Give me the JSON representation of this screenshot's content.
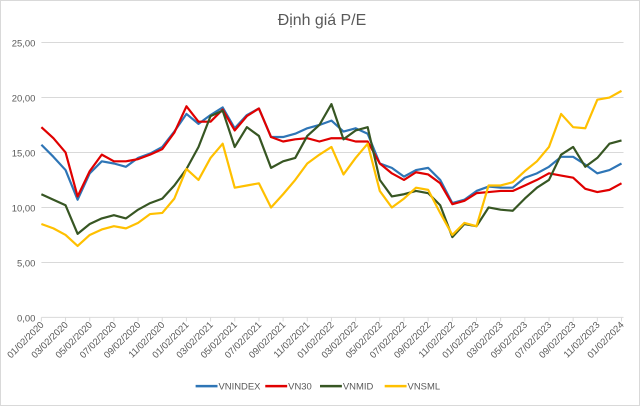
{
  "chart_data": {
    "type": "line",
    "title": "Định giá P/E",
    "xlabel": "",
    "ylabel": "",
    "ylim": [
      0,
      25
    ],
    "y_ticks": [
      "0,00",
      "5,00",
      "10,00",
      "15,00",
      "20,00",
      "25,00"
    ],
    "x_tick_labels": [
      "01/02/2020",
      "03/02/2020",
      "05/02/2020",
      "07/02/2020",
      "09/02/2020",
      "11/02/2020",
      "01/02/2021",
      "03/02/2021",
      "05/02/2021",
      "07/02/2021",
      "09/02/2021",
      "11/02/2021",
      "01/02/2022",
      "03/02/2022",
      "05/02/2022",
      "07/02/2022",
      "09/02/2022",
      "11/02/2022",
      "01/02/2023",
      "03/02/2023",
      "05/02/2023",
      "07/02/2023",
      "09/02/2023",
      "11/02/2023",
      "01/02/2024"
    ],
    "grid": "horizontal",
    "legend": "bottom",
    "x": [
      "2020-01",
      "2020-02",
      "2020-03",
      "2020-04",
      "2020-05",
      "2020-06",
      "2020-07",
      "2020-08",
      "2020-09",
      "2020-10",
      "2020-11",
      "2020-12",
      "2021-01",
      "2021-02",
      "2021-03",
      "2021-04",
      "2021-05",
      "2021-06",
      "2021-07",
      "2021-08",
      "2021-09",
      "2021-10",
      "2021-11",
      "2021-12",
      "2022-01",
      "2022-02",
      "2022-03",
      "2022-04",
      "2022-05",
      "2022-06",
      "2022-07",
      "2022-08",
      "2022-09",
      "2022-10",
      "2022-11",
      "2022-12",
      "2023-01",
      "2023-02",
      "2023-03",
      "2023-04",
      "2023-05",
      "2023-06",
      "2023-07",
      "2023-08",
      "2023-09",
      "2023-10",
      "2023-11",
      "2023-12",
      "2024-01"
    ],
    "series": [
      {
        "name": "VNINDEX",
        "color": "#2e75b6",
        "values": [
          15.7,
          14.6,
          13.4,
          10.7,
          13.1,
          14.2,
          14.0,
          13.7,
          14.5,
          14.9,
          15.5,
          16.9,
          18.5,
          17.6,
          18.4,
          19.1,
          17.2,
          18.4,
          19.0,
          16.4,
          16.4,
          16.7,
          17.2,
          17.5,
          17.9,
          16.9,
          17.2,
          16.7,
          14.0,
          13.6,
          12.8,
          13.4,
          13.6,
          12.5,
          10.4,
          10.7,
          11.5,
          11.9,
          11.8,
          11.8,
          12.7,
          13.1,
          13.7,
          14.6,
          14.6,
          13.9,
          13.1,
          13.4,
          14.0
        ]
      },
      {
        "name": "VN30",
        "color": "#e00000",
        "values": [
          17.3,
          16.3,
          15.0,
          11.0,
          13.3,
          14.8,
          14.2,
          14.2,
          14.4,
          14.8,
          15.3,
          16.8,
          19.2,
          17.8,
          17.8,
          18.9,
          17.0,
          18.3,
          19.0,
          16.4,
          16.0,
          16.2,
          16.3,
          16.0,
          16.3,
          16.3,
          16.0,
          16.0,
          14.0,
          13.1,
          12.5,
          13.2,
          13.0,
          12.2,
          10.3,
          10.6,
          11.3,
          11.4,
          11.5,
          11.5,
          12.0,
          12.5,
          13.1,
          12.9,
          12.7,
          11.7,
          11.4,
          11.6,
          12.2
        ]
      },
      {
        "name": "VNMID",
        "color": "#375623",
        "values": [
          11.2,
          10.7,
          10.2,
          7.6,
          8.5,
          9.0,
          9.3,
          9.0,
          9.8,
          10.4,
          10.8,
          12.0,
          13.5,
          15.5,
          18.3,
          18.8,
          15.5,
          17.3,
          16.5,
          13.6,
          14.2,
          14.5,
          16.5,
          17.5,
          19.4,
          16.2,
          17.0,
          17.3,
          12.5,
          11.0,
          11.2,
          11.5,
          11.3,
          10.2,
          7.3,
          8.5,
          8.3,
          10.0,
          9.8,
          9.7,
          10.8,
          11.8,
          12.5,
          14.8,
          15.5,
          13.7,
          14.5,
          15.8,
          16.1
        ]
      },
      {
        "name": "VNSML",
        "color": "#ffc000",
        "values": [
          8.5,
          8.1,
          7.5,
          6.5,
          7.5,
          8.0,
          8.3,
          8.1,
          8.6,
          9.4,
          9.5,
          10.8,
          13.5,
          12.5,
          14.5,
          15.8,
          11.8,
          12.0,
          12.2,
          10.0,
          11.2,
          12.5,
          14.0,
          14.8,
          15.5,
          13.0,
          14.5,
          15.8,
          11.5,
          10.0,
          10.8,
          11.8,
          11.6,
          9.5,
          7.5,
          8.6,
          8.3,
          12.0,
          12.0,
          12.3,
          13.3,
          14.2,
          15.5,
          18.5,
          17.3,
          17.2,
          19.8,
          20.0,
          20.6
        ]
      }
    ]
  }
}
